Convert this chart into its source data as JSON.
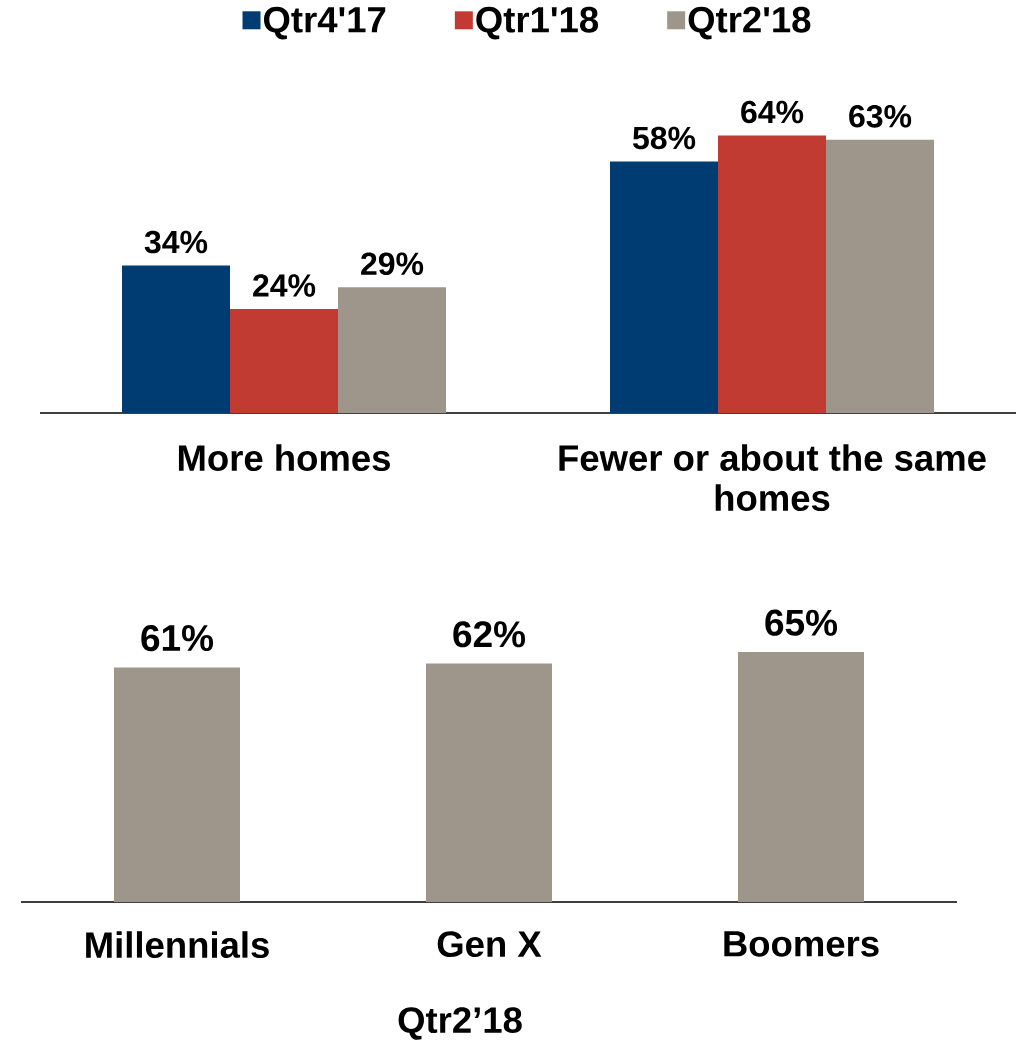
{
  "chart_data": [
    {
      "type": "bar",
      "categories": [
        "More homes",
        "Fewer or about the same homes"
      ],
      "series": [
        {
          "name": "Qtr4'17",
          "color": "#003b71",
          "values": [
            34,
            58
          ],
          "value_labels": [
            "34%",
            "58%"
          ]
        },
        {
          "name": "Qtr1'18",
          "color": "#c23b33",
          "values": [
            24,
            64
          ],
          "value_labels": [
            "24%",
            "64%"
          ]
        },
        {
          "name": "Qtr2'18",
          "color": "#9e968a",
          "values": [
            29,
            63
          ],
          "value_labels": [
            "29%",
            "63%"
          ]
        }
      ],
      "legend": "top"
    },
    {
      "type": "bar",
      "categories": [
        "Millennials",
        "Gen X",
        "Boomers"
      ],
      "series": [
        {
          "color": "#9e968a",
          "values": [
            61,
            62,
            65
          ],
          "value_labels": [
            "61%",
            "62%",
            "65%"
          ]
        }
      ],
      "xlabel": "Qtr2’18"
    }
  ]
}
